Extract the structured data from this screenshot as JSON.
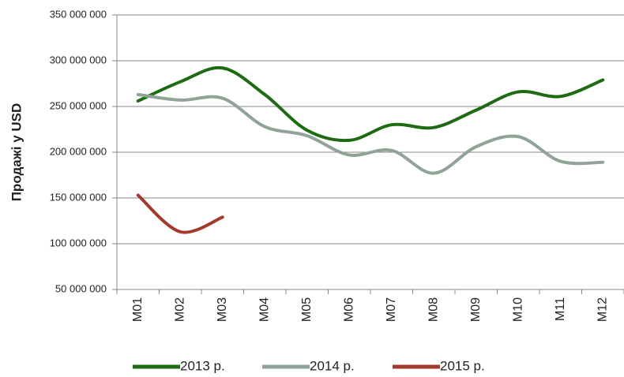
{
  "chart_data": {
    "type": "line",
    "y_label": "Продажі у USD",
    "categories": [
      "M01",
      "M02",
      "M03",
      "M04",
      "M05",
      "M06",
      "M07",
      "M08",
      "M09",
      "M10",
      "M11",
      "M12"
    ],
    "series": [
      {
        "name": "2013 р.",
        "color": "#1e6b14",
        "values": [
          256000000,
          277000000,
          292000000,
          263000000,
          224000000,
          213000000,
          230000000,
          227000000,
          246000000,
          266000000,
          261000000,
          279000000
        ]
      },
      {
        "name": "2014 р.",
        "color": "#8fa397",
        "values": [
          263000000,
          257000000,
          259000000,
          228000000,
          218000000,
          197000000,
          202000000,
          177000000,
          206000000,
          217000000,
          190000000,
          189000000
        ]
      },
      {
        "name": "2015 р.",
        "color": "#a33a2c",
        "values": [
          153000000,
          113000000,
          129000000,
          null,
          null,
          null,
          null,
          null,
          null,
          null,
          null,
          null
        ]
      }
    ],
    "ylim": [
      50000000,
      350000000
    ],
    "yticks": [
      {
        "value": 50000000,
        "label": "50 000 000"
      },
      {
        "value": 100000000,
        "label": "100 000 000"
      },
      {
        "value": 150000000,
        "label": "150 000 000"
      },
      {
        "value": 200000000,
        "label": "200 000 000"
      },
      {
        "value": 250000000,
        "label": "250 000 000"
      },
      {
        "value": 300000000,
        "label": "300 000 000"
      },
      {
        "value": 350000000,
        "label": "350 000 000"
      }
    ],
    "grid": true,
    "legend": "bottom",
    "smooth": true
  }
}
